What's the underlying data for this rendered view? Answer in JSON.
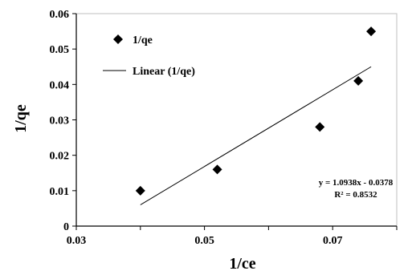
{
  "chart_data": {
    "type": "scatter",
    "xlabel": "1/ce",
    "ylabel": "1/qe",
    "xlim": [
      0.03,
      0.08
    ],
    "ylim": [
      0,
      0.06
    ],
    "x_ticks": [
      "0.03",
      "0.05",
      "0.07"
    ],
    "y_ticks": [
      "0",
      "0.01",
      "0.02",
      "0.03",
      "0.04",
      "0.05",
      "0.06"
    ],
    "series": [
      {
        "name": "1/qe",
        "marker": "diamond",
        "color": "#000000",
        "points": [
          {
            "x": 0.04,
            "y": 0.01
          },
          {
            "x": 0.052,
            "y": 0.016
          },
          {
            "x": 0.068,
            "y": 0.028
          },
          {
            "x": 0.074,
            "y": 0.041
          },
          {
            "x": 0.076,
            "y": 0.055
          }
        ]
      }
    ],
    "trendline": {
      "name": "Linear (1/qe)",
      "x_range": [
        0.04,
        0.076
      ],
      "y_range": [
        0.006,
        0.045
      ],
      "color": "#000000"
    },
    "annotations": {
      "equation": "y = 1.0938x - 0.0378",
      "r_squared": "R² = 0.8532"
    },
    "legend": {
      "placement": "top-left",
      "items": [
        "1/qe",
        "Linear (1/qe)"
      ]
    },
    "grid": false
  }
}
